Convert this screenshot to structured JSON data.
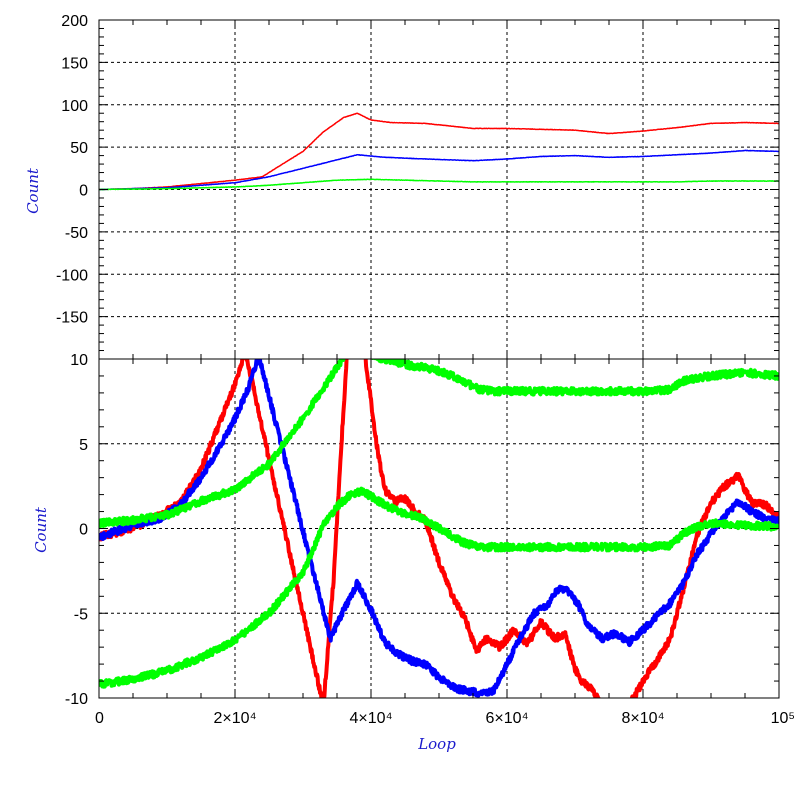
{
  "chart_data": [
    {
      "type": "line",
      "title": "",
      "xlabel": "",
      "ylabel": "Count",
      "xlim": [
        0,
        100000
      ],
      "ylim": [
        -200,
        200
      ],
      "yticks": [
        200,
        150,
        100,
        50,
        0,
        -50,
        -100,
        -150
      ],
      "grid": true,
      "series": [
        {
          "color": "#ff0000",
          "x": [
            0,
            5000,
            10000,
            15000,
            20000,
            24000,
            27000,
            30000,
            33000,
            36000,
            38000,
            40000,
            43000,
            48000,
            55000,
            60000,
            65000,
            70000,
            75000,
            80000,
            85000,
            90000,
            95000,
            100000
          ],
          "values": [
            0,
            1,
            3,
            7,
            11,
            15,
            30,
            45,
            68,
            85,
            90,
            82,
            79,
            78,
            72,
            72,
            71,
            70,
            66,
            69,
            73,
            78,
            79,
            78
          ]
        },
        {
          "color": "#0000ff",
          "x": [
            0,
            5000,
            10000,
            15000,
            20000,
            25000,
            30000,
            35000,
            38000,
            42000,
            48000,
            55000,
            60000,
            65000,
            70000,
            75000,
            80000,
            85000,
            90000,
            95000,
            100000
          ],
          "values": [
            0,
            1,
            2,
            5,
            8,
            15,
            25,
            35,
            41,
            38,
            36,
            34,
            36,
            39,
            40,
            38,
            39,
            41,
            43,
            46,
            45
          ]
        },
        {
          "color": "#00ff00",
          "x": [
            0,
            10000,
            20000,
            25000,
            30000,
            35000,
            40000,
            45000,
            55000,
            70000,
            85000,
            90000,
            100000
          ],
          "values": [
            0,
            1,
            3,
            5,
            8,
            11,
            12,
            11,
            9,
            9,
            9,
            10,
            10
          ]
        }
      ]
    },
    {
      "type": "line",
      "title": "",
      "xlabel": "Loop",
      "ylabel": "Count",
      "xlim": [
        0,
        100000
      ],
      "ylim": [
        -10,
        10
      ],
      "yticks": [
        10,
        5,
        0,
        -5,
        -10
      ],
      "xticks": [
        "0",
        "2×10⁴",
        "4×10⁴",
        "6×10⁴",
        "8×10⁴",
        "10⁵"
      ],
      "xtick_values": [
        0,
        20000,
        40000,
        60000,
        80000,
        100000
      ],
      "grid": true,
      "series": [
        {
          "color": "#ff0000",
          "x": [
            0,
            3000,
            6000,
            9000,
            12000,
            15000,
            18000,
            20000,
            21500,
            33000,
            34500,
            35500,
            36500,
            37000,
            38000,
            39000,
            40000,
            41000,
            42000,
            43500,
            45000,
            46500,
            48000,
            50000,
            52000,
            54000,
            55500,
            57000,
            59000,
            61000,
            63000,
            65000,
            67000,
            68500,
            70000,
            71000,
            72500,
            74000,
            76000,
            78000,
            80000,
            82000,
            84000,
            86000,
            88000,
            90000,
            92000,
            94000,
            96000,
            98000,
            100000
          ],
          "values": [
            -0.5,
            -0.2,
            0.2,
            0.8,
            1.5,
            3.5,
            6.5,
            8.5,
            10.5,
            -10.5,
            -3,
            4,
            10.5,
            11,
            11,
            10.5,
            7.5,
            4.5,
            2.3,
            1.6,
            1.8,
            1.0,
            0.5,
            -2,
            -4,
            -5.5,
            -7.2,
            -6.5,
            -7.0,
            -6.0,
            -6.8,
            -5.5,
            -6.5,
            -6.2,
            -8.3,
            -9.0,
            -9.5,
            -10.5,
            -10.8,
            -10.4,
            -9.0,
            -7.8,
            -6.5,
            -3.5,
            -0.3,
            1.5,
            2.5,
            3.1,
            1.5,
            1.4,
            0.6
          ]
        },
        {
          "color": "#0000ff",
          "x": [
            0,
            3000,
            6000,
            9000,
            12000,
            15000,
            18000,
            20000,
            22000,
            23500,
            34000,
            36000,
            38000,
            40000,
            42000,
            44000,
            46000,
            48000,
            50000,
            53000,
            56000,
            58000,
            60000,
            62000,
            64000,
            66000,
            67500,
            69000,
            70500,
            72000,
            74000,
            76000,
            78000,
            80000,
            82000,
            84000,
            86000,
            88000,
            90000,
            92000,
            94000,
            96000,
            98000,
            100000
          ],
          "values": [
            -0.5,
            -0.1,
            0.3,
            0.6,
            1.4,
            3.0,
            5.0,
            6.5,
            8.3,
            10.2,
            -6.5,
            -4.8,
            -3.2,
            -4.8,
            -6.7,
            -7.4,
            -7.8,
            -8.0,
            -8.8,
            -9.5,
            -9.7,
            -9.6,
            -8.0,
            -6.4,
            -5.0,
            -4.5,
            -3.6,
            -3.7,
            -4.5,
            -5.8,
            -6.5,
            -6.2,
            -6.7,
            -6.0,
            -5.2,
            -4.4,
            -3.2,
            -1.5,
            -0.3,
            0.7,
            1.6,
            1.0,
            0.6,
            0.4
          ]
        },
        {
          "color": "#00ff00",
          "x": [
            0,
            5000,
            10000,
            15000,
            20000,
            25000,
            30000,
            33000,
            35000,
            36500,
            38000,
            40000,
            42000,
            44000,
            46000,
            48000,
            50000,
            52000,
            54000,
            56000,
            58000,
            60000,
            65000,
            70000,
            75000,
            80000,
            84000,
            86000,
            88000,
            90000,
            95000,
            100000
          ],
          "values": [
            0.3,
            0.5,
            0.8,
            1.6,
            2.3,
            3.8,
            6.5,
            8.3,
            9.5,
            10.5,
            10.5,
            10.2,
            10.0,
            9.8,
            9.6,
            9.5,
            9.3,
            9.0,
            8.6,
            8.2,
            8.1,
            8.1,
            8.1,
            8.1,
            8.1,
            8.1,
            8.2,
            8.7,
            8.9,
            9.0,
            9.2,
            9.0
          ]
        },
        {
          "color": "#00ff00",
          "x": [
            0,
            5000,
            10000,
            15000,
            20000,
            25000,
            30000,
            33000,
            35000,
            37000,
            38500,
            40000,
            42000,
            44000,
            46000,
            48000,
            50000,
            52000,
            54000,
            56000,
            58000,
            60000,
            65000,
            70000,
            75000,
            80000,
            84000,
            86000,
            88000,
            90000,
            95000,
            100000
          ],
          "values": [
            -9.2,
            -8.9,
            -8.4,
            -7.6,
            -6.6,
            -5.0,
            -2.6,
            0.2,
            1.3,
            2.0,
            2.2,
            1.9,
            1.4,
            1.0,
            0.8,
            0.5,
            0.0,
            -0.5,
            -0.9,
            -1.1,
            -1.1,
            -1.1,
            -1.1,
            -1.1,
            -1.1,
            -1.1,
            -1.0,
            -0.3,
            0.1,
            0.3,
            0.2,
            0.1
          ]
        }
      ]
    }
  ]
}
